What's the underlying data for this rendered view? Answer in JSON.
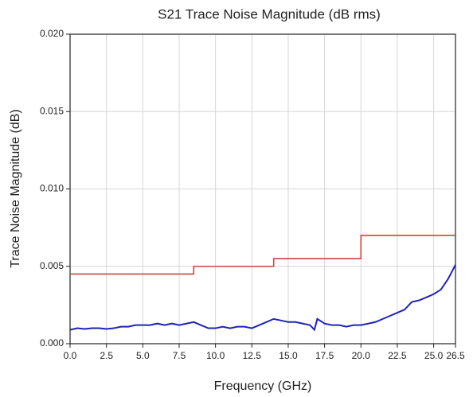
{
  "chart_data": {
    "type": "line",
    "title": "S21 Trace Noise Magnitude (dB rms)",
    "x_label": "Frequency (GHz)",
    "y_label": "Trace Noise Magnitude (dB)",
    "xlim": [
      0,
      26.5
    ],
    "ylim": [
      0,
      0.02
    ],
    "xticks": [
      {
        "value": 0,
        "label": "0.0"
      },
      2.5,
      {
        "value": 5,
        "label": "5.0"
      },
      7.5,
      {
        "value": 10,
        "label": "10.0"
      },
      12.5,
      {
        "value": 15,
        "label": "15.0"
      },
      17.5,
      {
        "value": 20,
        "label": "20.0"
      },
      22.5,
      {
        "value": 25,
        "label": "25.0"
      },
      26.5
    ],
    "yticks": [
      {
        "value": 0,
        "label": "0.000"
      },
      {
        "value": 0.005,
        "label": "0.005"
      },
      {
        "value": 0.01,
        "label": "0.010"
      },
      {
        "value": 0.015,
        "label": "0.015"
      },
      {
        "value": 0.02,
        "label": "0.020"
      }
    ],
    "grid": true,
    "series": [
      {
        "color": "#c9463d",
        "x": [
          0,
          8.5,
          8.5,
          14,
          14,
          20,
          20,
          26.5
        ],
        "values": [
          0.0045,
          0.0045,
          0.005,
          0.005,
          0.0055,
          0.0055,
          0.007,
          0.007
        ]
      },
      {
        "color": "#1f22b8",
        "x": [
          0,
          0.5,
          1,
          1.5,
          2,
          2.5,
          3,
          3.5,
          4,
          4.5,
          5,
          5.5,
          6,
          6.5,
          7,
          7.5,
          8,
          8.5,
          9,
          9.5,
          10,
          10.5,
          11,
          11.5,
          12,
          12.5,
          13,
          13.5,
          14,
          14.5,
          15,
          15.5,
          16,
          16.5,
          16.8,
          17,
          17.5,
          18,
          18.5,
          19,
          19.5,
          20,
          20.5,
          21,
          21.5,
          22,
          22.5,
          23,
          23.5,
          24,
          24.5,
          25,
          25.5,
          26,
          26.5
        ],
        "values": [
          0.0009,
          0.001,
          0.00095,
          0.001,
          0.001,
          0.00095,
          0.001,
          0.0011,
          0.0011,
          0.0012,
          0.0012,
          0.0012,
          0.0013,
          0.0012,
          0.0013,
          0.0012,
          0.0013,
          0.0014,
          0.0012,
          0.001,
          0.001,
          0.0011,
          0.001,
          0.0011,
          0.0011,
          0.001,
          0.0012,
          0.0014,
          0.0016,
          0.0015,
          0.0014,
          0.0014,
          0.0013,
          0.0012,
          0.0009,
          0.0016,
          0.0013,
          0.0012,
          0.0012,
          0.0011,
          0.0012,
          0.0012,
          0.0013,
          0.0014,
          0.0016,
          0.0018,
          0.002,
          0.0022,
          0.0027,
          0.0028,
          0.003,
          0.0032,
          0.0035,
          0.0042,
          0.0051
        ]
      }
    ]
  }
}
